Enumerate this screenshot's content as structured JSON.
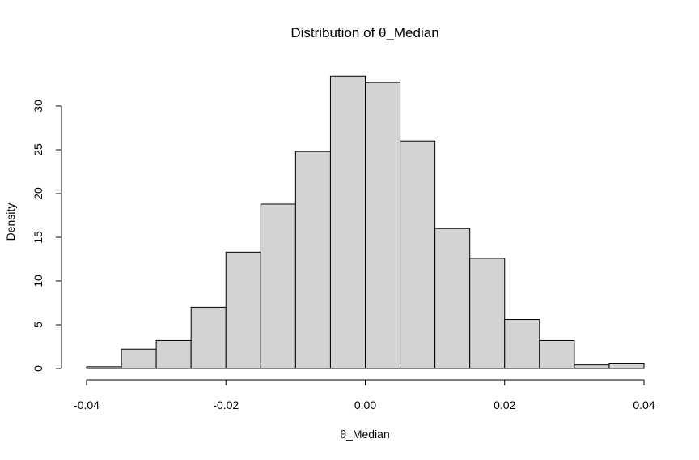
{
  "chart_data": {
    "type": "bar",
    "title": "Distribution of θ_Median",
    "xlabel": "θ_Median",
    "ylabel": "Density",
    "xlim": [
      -0.04,
      0.04
    ],
    "ylim": [
      0,
      30
    ],
    "x_ticks": [
      -0.04,
      -0.02,
      0.0,
      0.02,
      0.04
    ],
    "x_tick_labels": [
      "-0.04",
      "-0.02",
      "0.00",
      "0.02",
      "0.04"
    ],
    "y_ticks": [
      0,
      5,
      10,
      15,
      20,
      25,
      30
    ],
    "y_tick_labels": [
      "0",
      "5",
      "10",
      "15",
      "20",
      "25",
      "30"
    ],
    "bin_edges": [
      -0.04,
      -0.035,
      -0.03,
      -0.025,
      -0.02,
      -0.015,
      -0.01,
      -0.005,
      0.0,
      0.005,
      0.01,
      0.015,
      0.02,
      0.025,
      0.03,
      0.035,
      0.04
    ],
    "values": [
      0.2,
      2.2,
      3.2,
      7.0,
      13.3,
      18.8,
      24.8,
      33.4,
      32.7,
      26.0,
      16.0,
      12.6,
      5.6,
      3.2,
      0.4,
      0.6
    ],
    "grid": false,
    "colors": {
      "bar_fill": "#d3d3d3",
      "bar_stroke": "#000000"
    }
  }
}
